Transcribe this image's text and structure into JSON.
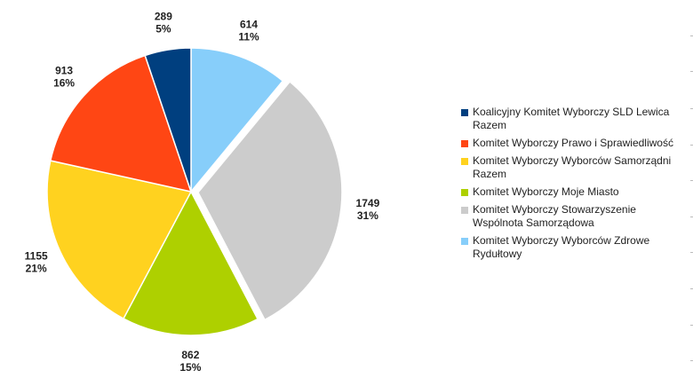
{
  "chart_data": {
    "type": "pie",
    "title": "",
    "series": [
      {
        "name": "Koalicyjny Komitet Wyborczy SLD Lewica Razem",
        "value": 289,
        "pct": "5%",
        "color": "#003f7f"
      },
      {
        "name": "Komitet Wyborczy Prawo i Sprawiedliwość",
        "value": 913,
        "pct": "16%",
        "color": "#ff4614"
      },
      {
        "name": "Komitet Wyborczy Wyborców Samorządni Razem",
        "value": 1155,
        "pct": "21%",
        "color": "#ffd21f"
      },
      {
        "name": "Komitet Wyborczy Moje Miasto",
        "value": 862,
        "pct": "15%",
        "color": "#aed000"
      },
      {
        "name": "Komitet Wyborczy Stowarzyszenie Wspólnota Samorządowa",
        "value": 1749,
        "pct": "31%",
        "color": "#cccccc"
      },
      {
        "name": "Komitet Wyborczy Wyborców Zdrowe Rydułtowy",
        "value": 614,
        "pct": "11%",
        "color": "#87cefa"
      }
    ],
    "slice_order": [
      5,
      4,
      3,
      2,
      1,
      0
    ],
    "exploded_slice": 4,
    "legend_position": "right"
  }
}
